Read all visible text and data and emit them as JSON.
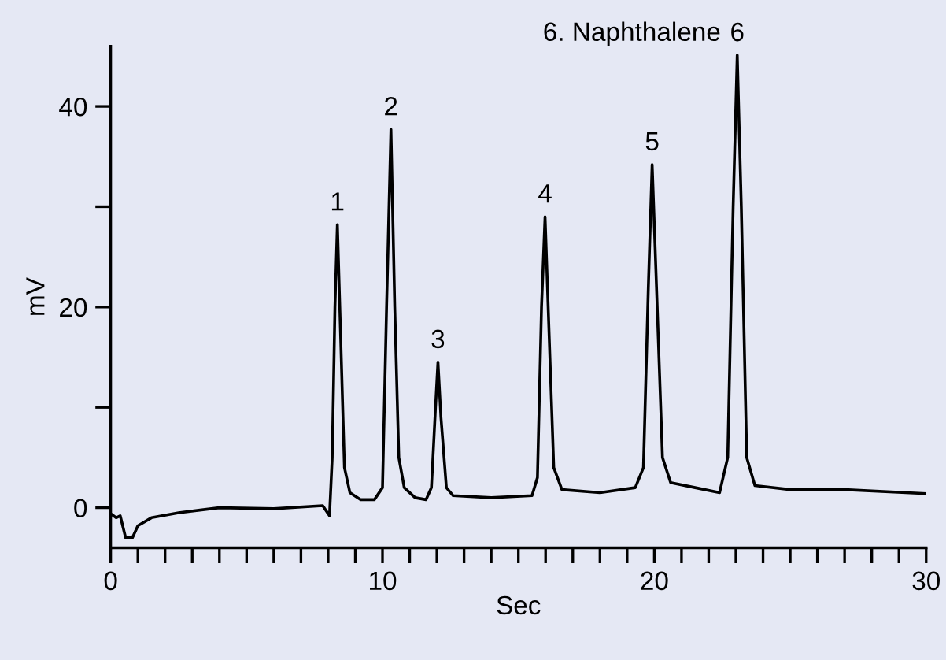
{
  "chart_data": {
    "type": "line",
    "xlabel": "Sec",
    "ylabel": "mV",
    "xlim": [
      0,
      30
    ],
    "ylim": [
      -4,
      46
    ],
    "xticks": [
      0,
      {
        "value": 1,
        "label": null
      },
      {
        "value": 2,
        "label": null
      },
      {
        "value": 3,
        "label": null
      },
      {
        "value": 4,
        "label": null
      },
      {
        "value": 5,
        "label": null
      },
      {
        "value": 6,
        "label": null
      },
      {
        "value": 7,
        "label": null
      },
      {
        "value": 8,
        "label": null
      },
      {
        "value": 9,
        "label": null
      },
      10,
      {
        "value": 11,
        "label": null
      },
      {
        "value": 12,
        "label": null
      },
      {
        "value": 13,
        "label": null
      },
      {
        "value": 14,
        "label": null
      },
      {
        "value": 15,
        "label": null
      },
      {
        "value": 16,
        "label": null
      },
      {
        "value": 17,
        "label": null
      },
      {
        "value": 18,
        "label": null
      },
      {
        "value": 19,
        "label": null
      },
      20,
      {
        "value": 21,
        "label": null
      },
      {
        "value": 22,
        "label": null
      },
      {
        "value": 23,
        "label": null
      },
      {
        "value": 24,
        "label": null
      },
      {
        "value": 25,
        "label": null
      },
      {
        "value": 26,
        "label": null
      },
      {
        "value": 27,
        "label": null
      },
      {
        "value": 28,
        "label": null
      },
      {
        "value": 29,
        "label": null
      },
      30
    ],
    "yticks": [
      0,
      {
        "value": 10,
        "label": null
      },
      20,
      {
        "value": 30,
        "label": null
      },
      40
    ],
    "grid": false,
    "marker": "none",
    "line_style": "solid",
    "series": [
      {
        "color": "#000000",
        "x": [
          0,
          0.2,
          0.35,
          0.55,
          0.8,
          1.0,
          1.5,
          2.5,
          4,
          6,
          7.8,
          8.05,
          8.15,
          8.25,
          8.34,
          8.45,
          8.6,
          8.8,
          9.2,
          9.7,
          10.0,
          10.15,
          10.31,
          10.45,
          10.6,
          10.8,
          11.2,
          11.6,
          11.8,
          11.95,
          12.04,
          12.15,
          12.35,
          12.6,
          14,
          15.5,
          15.7,
          15.85,
          15.98,
          16.12,
          16.3,
          16.6,
          18,
          19.3,
          19.6,
          19.78,
          19.92,
          20.08,
          20.3,
          20.6,
          21.5,
          22.4,
          22.7,
          22.9,
          23.05,
          23.2,
          23.4,
          23.7,
          25,
          27,
          30
        ],
        "values": [
          -0.6,
          -1.0,
          -0.8,
          -3.0,
          -3.0,
          -1.8,
          -1.0,
          -0.5,
          0.0,
          -0.1,
          0.2,
          -0.8,
          5,
          20,
          28.2,
          18,
          4,
          1.5,
          0.8,
          0.8,
          2,
          20,
          37.7,
          20,
          5,
          2,
          1.0,
          0.8,
          2,
          10,
          14.5,
          9,
          2,
          1.2,
          1.0,
          1.2,
          3,
          20,
          29.0,
          18,
          4,
          1.8,
          1.5,
          2.0,
          4,
          22,
          34.2,
          22,
          5,
          2.5,
          2.0,
          1.5,
          5,
          30,
          45.1,
          30,
          5,
          2.2,
          1.8,
          1.8,
          1.4
        ]
      }
    ],
    "annotations": [
      "6. Naphthalene",
      {
        "text": "1",
        "x": 8.34,
        "y": 28.2
      },
      {
        "text": "2",
        "x": 10.31,
        "y": 37.7
      },
      {
        "text": "3",
        "x": 12.04,
        "y": 14.5
      },
      {
        "text": "4",
        "x": 15.98,
        "y": 29.0
      },
      {
        "text": "5",
        "x": 19.92,
        "y": 34.2
      },
      {
        "text": "6",
        "x": 23.05,
        "y": 45.1
      }
    ]
  }
}
